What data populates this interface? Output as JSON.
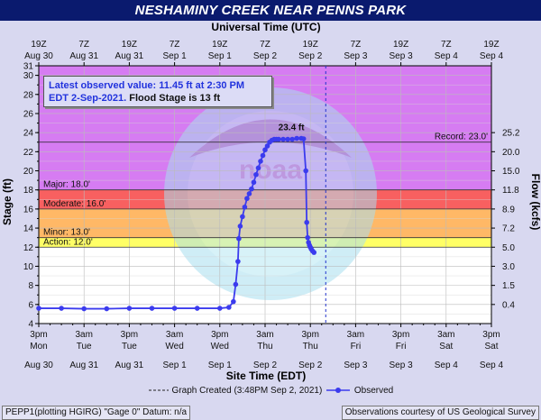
{
  "title": "NESHAMINY CREEK NEAR PENNS PARK",
  "note": {
    "line1": "Latest observed value: 11.45 ft at 2:30 PM",
    "line2_date": "EDT 2-Sep-2021.",
    "line2_flood": "Flood Stage is 13 ft"
  },
  "legend": {
    "graph_created": "Graph Created (3:48PM Sep 2, 2021)",
    "observed": "Observed"
  },
  "footer": {
    "left": "PEPP1(plotting HGIRG) \"Gage 0\" Datum: n/a",
    "right": "Observations courtesy of US Geological Survey"
  },
  "colors": {
    "major": "#d67cf2",
    "moderate": "#f86060",
    "minor": "#ffb866",
    "action": "#ffff66",
    "normal": "#ffffff",
    "observed": "#3b3bee",
    "title_bg": "#0a1a6e"
  },
  "chart_data": {
    "type": "line",
    "title": "NESHAMINY CREEK NEAR PENNS PARK",
    "xlabel": "Site Time (EDT)",
    "xlabel_top": "Universal Time (UTC)",
    "ylabel": "Stage (ft)",
    "ylabel_right": "Flow (kcfs)",
    "ylim": [
      4,
      31
    ],
    "y_ticks": [
      4,
      6,
      8,
      10,
      12,
      14,
      16,
      18,
      20,
      22,
      24,
      26,
      28,
      30,
      31
    ],
    "x_ticks_bottom": [
      {
        "time": "3pm",
        "date": "Mon",
        "date2": "Aug 30"
      },
      {
        "time": "3am",
        "date": "Tue",
        "date2": "Aug 31"
      },
      {
        "time": "3pm",
        "date": "Tue",
        "date2": "Aug 31"
      },
      {
        "time": "3am",
        "date": "Wed",
        "date2": "Sep 1"
      },
      {
        "time": "3pm",
        "date": "Wed",
        "date2": "Sep 1"
      },
      {
        "time": "3am",
        "date": "Thu",
        "date2": "Sep 2"
      },
      {
        "time": "3pm",
        "date": "Thu",
        "date2": "Sep 2"
      },
      {
        "time": "3am",
        "date": "Fri",
        "date2": "Sep 3"
      },
      {
        "time": "3pm",
        "date": "Fri",
        "date2": "Sep 3"
      },
      {
        "time": "3am",
        "date": "Sat",
        "date2": "Sep 4"
      },
      {
        "time": "3pm",
        "date": "Sat",
        "date2": "Sep 4"
      }
    ],
    "x_ticks_top": [
      {
        "time": "19Z",
        "date": "Aug 30"
      },
      {
        "time": "7Z",
        "date": "Aug 31"
      },
      {
        "time": "19Z",
        "date": "Aug 31"
      },
      {
        "time": "7Z",
        "date": "Sep 1"
      },
      {
        "time": "19Z",
        "date": "Sep 1"
      },
      {
        "time": "7Z",
        "date": "Sep 2"
      },
      {
        "time": "19Z",
        "date": "Sep 2"
      },
      {
        "time": "7Z",
        "date": "Sep 3"
      },
      {
        "time": "19Z",
        "date": "Sep 3"
      },
      {
        "time": "7Z",
        "date": "Sep 4"
      },
      {
        "time": "19Z",
        "date": "Sep 4"
      }
    ],
    "flow_ticks": [
      {
        "stage": 6.0,
        "label": "0.4"
      },
      {
        "stage": 8.0,
        "label": "1.5"
      },
      {
        "stage": 10.0,
        "label": "3.0"
      },
      {
        "stage": 12.0,
        "label": "5.0"
      },
      {
        "stage": 14.0,
        "label": "7.2"
      },
      {
        "stage": 16.0,
        "label": "8.9"
      },
      {
        "stage": 18.0,
        "label": "11.8"
      },
      {
        "stage": 20.0,
        "label": "15.0"
      },
      {
        "stage": 22.0,
        "label": "20.0"
      },
      {
        "stage": 24.0,
        "label": "25.2"
      }
    ],
    "flood_categories": [
      {
        "name": "Major",
        "label": "Major: 18.0'",
        "from": 18.0,
        "to": 31.0
      },
      {
        "name": "Moderate",
        "label": "Moderate: 16.0'",
        "from": 16.0,
        "to": 18.0
      },
      {
        "name": "Minor",
        "label": "Minor: 13.0'",
        "from": 13.0,
        "to": 16.0
      },
      {
        "name": "Action",
        "label": "Action: 12.0'",
        "from": 12.0,
        "to": 13.0
      }
    ],
    "record": {
      "label": "Record: 23.0'",
      "value": 23.0
    },
    "peak_label": "23.4 ft",
    "graph_created_x": 6.34,
    "series": [
      {
        "name": "Observed",
        "x": [
          0.0,
          0.5,
          1.0,
          1.5,
          2.0,
          2.5,
          3.0,
          3.5,
          4.0,
          4.2,
          4.3,
          4.35,
          4.4,
          4.42,
          4.45,
          4.5,
          4.55,
          4.6,
          4.65,
          4.7,
          4.75,
          4.8,
          4.85,
          4.9,
          4.95,
          5.0,
          5.05,
          5.1,
          5.15,
          5.2,
          5.25,
          5.3,
          5.4,
          5.5,
          5.6,
          5.7,
          5.8,
          5.85,
          5.9,
          5.92,
          5.94,
          5.96,
          5.98,
          6.0,
          6.02,
          6.05,
          6.08
        ],
        "values": [
          5.6,
          5.6,
          5.55,
          5.55,
          5.6,
          5.6,
          5.6,
          5.6,
          5.6,
          5.7,
          6.3,
          8.1,
          10.5,
          12.9,
          14.2,
          15.2,
          16.2,
          17.1,
          17.6,
          18.1,
          18.8,
          19.6,
          20.3,
          21.0,
          21.6,
          22.2,
          22.6,
          23.0,
          23.2,
          23.3,
          23.3,
          23.3,
          23.3,
          23.3,
          23.3,
          23.4,
          23.4,
          23.35,
          20.0,
          14.6,
          13.0,
          12.5,
          12.2,
          12.0,
          11.8,
          11.6,
          11.45
        ]
      }
    ]
  }
}
